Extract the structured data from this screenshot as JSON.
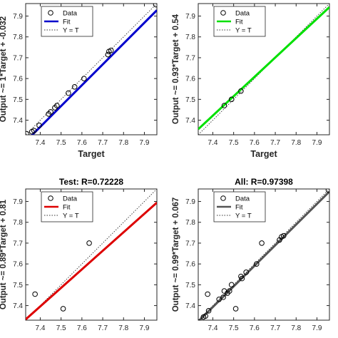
{
  "chart_data": [
    {
      "type": "scatter",
      "title": "",
      "xlabel": "Target",
      "ylabel": "Output ~= 1*Target + -0.032",
      "xlim": [
        7.33,
        7.96
      ],
      "ylim": [
        7.33,
        7.96
      ],
      "xticks": [
        "7.4",
        "7.5",
        "7.6",
        "7.7",
        "7.8",
        "7.9"
      ],
      "yticks": [
        "7.4",
        "7.5",
        "7.6",
        "7.7",
        "7.8",
        "7.9"
      ],
      "grid": false,
      "legend_position": "top-left",
      "legend": [
        "Data",
        "Fit",
        "Y = T"
      ],
      "fit_color": "#0000CC",
      "fit": {
        "slope": 1.0,
        "intercept": -0.032
      },
      "points": [
        {
          "x": 7.335,
          "y": 7.335
        },
        {
          "x": 7.36,
          "y": 7.345
        },
        {
          "x": 7.37,
          "y": 7.35
        },
        {
          "x": 7.395,
          "y": 7.375
        },
        {
          "x": 7.44,
          "y": 7.43
        },
        {
          "x": 7.45,
          "y": 7.44
        },
        {
          "x": 7.47,
          "y": 7.46
        },
        {
          "x": 7.48,
          "y": 7.47
        },
        {
          "x": 7.535,
          "y": 7.53
        },
        {
          "x": 7.565,
          "y": 7.56
        },
        {
          "x": 7.61,
          "y": 7.6
        },
        {
          "x": 7.725,
          "y": 7.715
        },
        {
          "x": 7.73,
          "y": 7.73
        },
        {
          "x": 7.74,
          "y": 7.735
        },
        {
          "x": 7.955,
          "y": 7.955
        }
      ]
    },
    {
      "type": "scatter",
      "title": "",
      "xlabel": "Target",
      "ylabel": "Output ~= 0.93*Target + 0.54",
      "xlim": [
        7.33,
        7.96
      ],
      "ylim": [
        7.33,
        7.96
      ],
      "xticks": [
        "7.4",
        "7.5",
        "7.6",
        "7.7",
        "7.8",
        "7.9"
      ],
      "yticks": [
        "7.4",
        "7.5",
        "7.6",
        "7.7",
        "7.8",
        "7.9"
      ],
      "grid": false,
      "legend_position": "top-left",
      "legend": [
        "Data",
        "Fit",
        "Y = T"
      ],
      "fit_color": "#00E000",
      "fit": {
        "slope": 0.93,
        "intercept": 0.54
      },
      "points": [
        {
          "x": 7.455,
          "y": 7.47
        },
        {
          "x": 7.49,
          "y": 7.5
        },
        {
          "x": 7.535,
          "y": 7.54
        }
      ]
    },
    {
      "type": "scatter",
      "title": "Test: R=0.72228",
      "xlabel": "",
      "ylabel": "Output ~= 0.89*Target + 0.81",
      "xlim": [
        7.33,
        7.96
      ],
      "ylim": [
        7.33,
        7.96
      ],
      "xticks": [
        "7.4",
        "7.5",
        "7.6",
        "7.7",
        "7.8",
        "7.9"
      ],
      "yticks": [
        "7.4",
        "7.5",
        "7.6",
        "7.7",
        "7.8",
        "7.9"
      ],
      "grid": false,
      "legend_position": "top-left",
      "legend": [
        "Data",
        "Fit",
        "Y = T"
      ],
      "fit_color": "#DD0000",
      "fit": {
        "slope": 0.89,
        "intercept": 0.81
      },
      "points": [
        {
          "x": 7.375,
          "y": 7.455
        },
        {
          "x": 7.51,
          "y": 7.385
        },
        {
          "x": 7.635,
          "y": 7.7
        }
      ]
    },
    {
      "type": "scatter",
      "title": "All: R=0.97398",
      "xlabel": "",
      "ylabel": "Output ~= 0.99*Target + 0.067",
      "xlim": [
        7.33,
        7.96
      ],
      "ylim": [
        7.33,
        7.96
      ],
      "xticks": [
        "7.4",
        "7.5",
        "7.6",
        "7.7",
        "7.8",
        "7.9"
      ],
      "yticks": [
        "7.4",
        "7.5",
        "7.6",
        "7.7",
        "7.8",
        "7.9"
      ],
      "grid": false,
      "legend_position": "top-left",
      "legend": [
        "Data",
        "Fit",
        "Y = T"
      ],
      "fit_color": "#555555",
      "fit": {
        "slope": 0.99,
        "intercept": 0.067
      },
      "points": [
        {
          "x": 7.335,
          "y": 7.32
        },
        {
          "x": 7.355,
          "y": 7.345
        },
        {
          "x": 7.365,
          "y": 7.35
        },
        {
          "x": 7.375,
          "y": 7.455
        },
        {
          "x": 7.38,
          "y": 7.375
        },
        {
          "x": 7.43,
          "y": 7.43
        },
        {
          "x": 7.45,
          "y": 7.44
        },
        {
          "x": 7.455,
          "y": 7.47
        },
        {
          "x": 7.47,
          "y": 7.46
        },
        {
          "x": 7.48,
          "y": 7.47
        },
        {
          "x": 7.49,
          "y": 7.5
        },
        {
          "x": 7.51,
          "y": 7.385
        },
        {
          "x": 7.535,
          "y": 7.54
        },
        {
          "x": 7.54,
          "y": 7.53
        },
        {
          "x": 7.56,
          "y": 7.56
        },
        {
          "x": 7.61,
          "y": 7.6
        },
        {
          "x": 7.635,
          "y": 7.7
        },
        {
          "x": 7.72,
          "y": 7.715
        },
        {
          "x": 7.73,
          "y": 7.73
        },
        {
          "x": 7.74,
          "y": 7.735
        },
        {
          "x": 7.955,
          "y": 7.955
        }
      ]
    }
  ]
}
